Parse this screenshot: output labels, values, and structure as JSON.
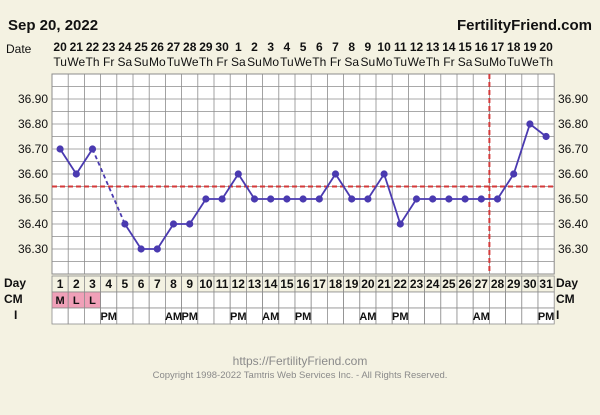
{
  "header": {
    "date": "Sep 20, 2022",
    "brand": "FertilityFriend.com",
    "date_row_label": "Date"
  },
  "date_columns": [
    {
      "day": "20",
      "wd": "Tu"
    },
    {
      "day": "21",
      "wd": "We"
    },
    {
      "day": "22",
      "wd": "Th"
    },
    {
      "day": "23",
      "wd": "Fr"
    },
    {
      "day": "24",
      "wd": "Sa"
    },
    {
      "day": "25",
      "wd": "Su"
    },
    {
      "day": "26",
      "wd": "Mo"
    },
    {
      "day": "27",
      "wd": "Tu"
    },
    {
      "day": "28",
      "wd": "We"
    },
    {
      "day": "29",
      "wd": "Th"
    },
    {
      "day": "30",
      "wd": "Fr"
    },
    {
      "day": "1",
      "wd": "Sa"
    },
    {
      "day": "2",
      "wd": "Su"
    },
    {
      "day": "3",
      "wd": "Mo"
    },
    {
      "day": "4",
      "wd": "Tu"
    },
    {
      "day": "5",
      "wd": "We"
    },
    {
      "day": "6",
      "wd": "Th"
    },
    {
      "day": "7",
      "wd": "Fr"
    },
    {
      "day": "8",
      "wd": "Sa"
    },
    {
      "day": "9",
      "wd": "Su"
    },
    {
      "day": "10",
      "wd": "Mo"
    },
    {
      "day": "11",
      "wd": "Tu"
    },
    {
      "day": "12",
      "wd": "We"
    },
    {
      "day": "13",
      "wd": "Th"
    },
    {
      "day": "14",
      "wd": "Fr"
    },
    {
      "day": "15",
      "wd": "Sa"
    },
    {
      "day": "16",
      "wd": "Su"
    },
    {
      "day": "17",
      "wd": "Mo"
    },
    {
      "day": "18",
      "wd": "Tu"
    },
    {
      "day": "19",
      "wd": "We"
    },
    {
      "day": "20",
      "wd": "Th"
    }
  ],
  "rows": {
    "day_label": "Day",
    "cm_label": "CM",
    "i_label": "I",
    "cm": [
      "M",
      "L",
      "L",
      "",
      "",
      "",
      "",
      "",
      "",
      "",
      "",
      "",
      "",
      "",
      "",
      "",
      "",
      "",
      "",
      "",
      "",
      "",
      "",
      "",
      "",
      "",
      "",
      "",
      "",
      "",
      ""
    ],
    "intercourse": [
      "",
      "",
      "",
      "PM",
      "",
      "",
      "",
      "AM",
      "PM",
      "",
      "",
      "PM",
      "",
      "AM",
      "",
      "PM",
      "",
      "",
      "",
      "AM",
      "",
      "PM",
      "",
      "",
      "",
      "",
      "AM",
      "",
      "",
      "",
      "PM"
    ]
  },
  "footer": {
    "url": "https://FertilityFriend.com",
    "copyright": "Copyright 1998-2022 Tamtris Web Services Inc. - All Rights Reserved."
  },
  "colors": {
    "background": "#f4f2e2",
    "grid": "#8c8c8c",
    "line": "#4a3ab0",
    "coverline": "#d43a3a",
    "cm_highlight": "#f0a0b8",
    "plot_bg": "#ffffff"
  },
  "chart_data": {
    "type": "line",
    "x": [
      1,
      2,
      3,
      4,
      5,
      6,
      7,
      8,
      9,
      10,
      11,
      12,
      13,
      14,
      15,
      16,
      17,
      18,
      19,
      20,
      21,
      22,
      23,
      24,
      25,
      26,
      27,
      28,
      29,
      30,
      31
    ],
    "y": [
      36.7,
      36.6,
      36.7,
      null,
      36.4,
      36.3,
      36.3,
      36.4,
      36.4,
      36.5,
      36.5,
      36.6,
      36.5,
      36.5,
      36.5,
      36.5,
      36.5,
      36.6,
      36.5,
      36.5,
      36.6,
      36.4,
      36.5,
      36.5,
      36.5,
      36.5,
      36.5,
      36.5,
      36.6,
      36.8,
      36.75
    ],
    "ylim": [
      36.2,
      37.0
    ],
    "yticks": [
      "36.30",
      "36.40",
      "36.50",
      "36.60",
      "36.70",
      "36.80",
      "36.90"
    ],
    "coverline": 36.55,
    "ovulation_day": 28,
    "dashed_gap": [
      3,
      5
    ],
    "grid": true
  }
}
